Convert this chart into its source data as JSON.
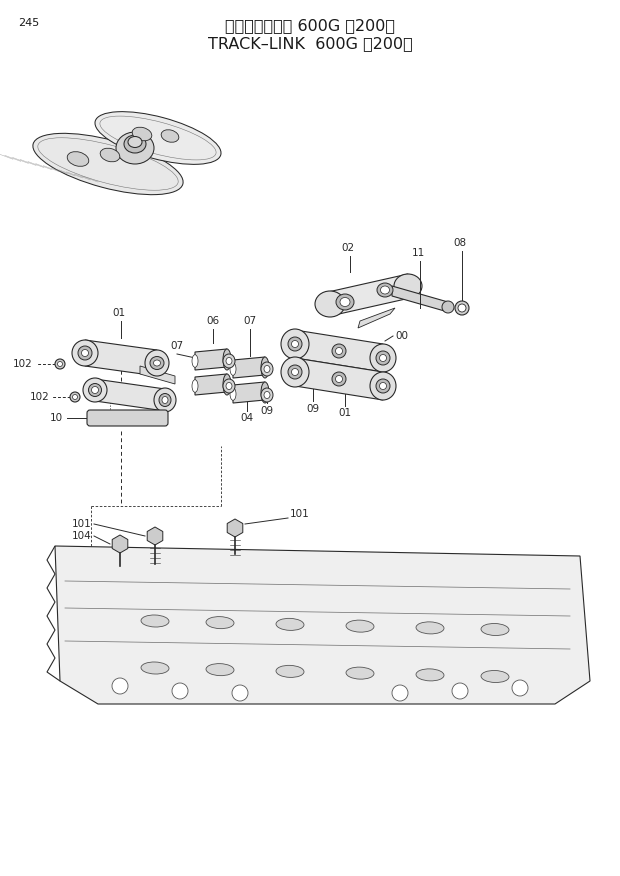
{
  "page_number": "245",
  "title_japanese": "トラックリンク 600G （200）",
  "title_english": "TRACK–LINK  600G （200）",
  "background_color": "#ffffff",
  "text_color": "#1a1a1a",
  "title_fontsize": 11.5,
  "page_num_fontsize": 8,
  "label_fontsize": 7.5,
  "line_color": "#2a2a2a",
  "fill_light": "#f5f5f5",
  "fill_mid": "#e0e0e0",
  "fill_dark": "#c8c8c8"
}
